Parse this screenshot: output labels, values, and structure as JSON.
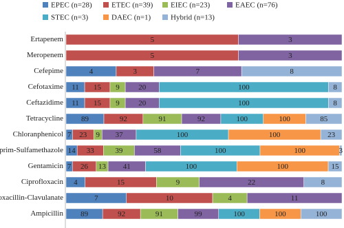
{
  "chart_data": {
    "type": "stacked-bar-100-horizontal",
    "categories": [
      "Ertapenem",
      "Meropenem",
      "Cefepime",
      "Cefotaxime",
      "Ceftazidime",
      "Tetracycline",
      "Chloranphenicol",
      "Trimethoprim-Sulfamethazole",
      "Gentamicin",
      "Ciprofloxacin",
      "Amoxacillin-Clavulanate",
      "Ampicillin"
    ],
    "series": [
      {
        "name": "EPEC (n=28)",
        "color": "#4f81bd",
        "values": [
          null,
          null,
          4,
          11,
          11,
          89,
          7,
          14,
          7,
          4,
          7,
          89
        ]
      },
      {
        "name": "ETEC (n=39)",
        "color": "#c0504d",
        "values": [
          5,
          5,
          3,
          15,
          15,
          92,
          23,
          33,
          26,
          15,
          10,
          92
        ]
      },
      {
        "name": "EIEC (n=23)",
        "color": "#9bbb59",
        "values": [
          null,
          null,
          null,
          9,
          9,
          91,
          9,
          39,
          13,
          9,
          4,
          91
        ]
      },
      {
        "name": "EAEC (n=76)",
        "color": "#8064a2",
        "values": [
          3,
          3,
          7,
          20,
          20,
          92,
          37,
          58,
          41,
          22,
          11,
          99
        ]
      },
      {
        "name": "STEC (n=3)",
        "color": "#4bacc6",
        "values": [
          null,
          null,
          null,
          100,
          100,
          100,
          100,
          100,
          100,
          null,
          null,
          100
        ]
      },
      {
        "name": "DAEC (n=1)",
        "color": "#f79646",
        "values": [
          null,
          null,
          null,
          null,
          null,
          100,
          100,
          100,
          100,
          null,
          null,
          100
        ]
      },
      {
        "name": "Hybrid (n=13)",
        "color": "#95b3d7",
        "values": [
          null,
          null,
          8,
          8,
          8,
          85,
          23,
          3,
          15,
          8,
          null,
          100
        ]
      }
    ]
  }
}
